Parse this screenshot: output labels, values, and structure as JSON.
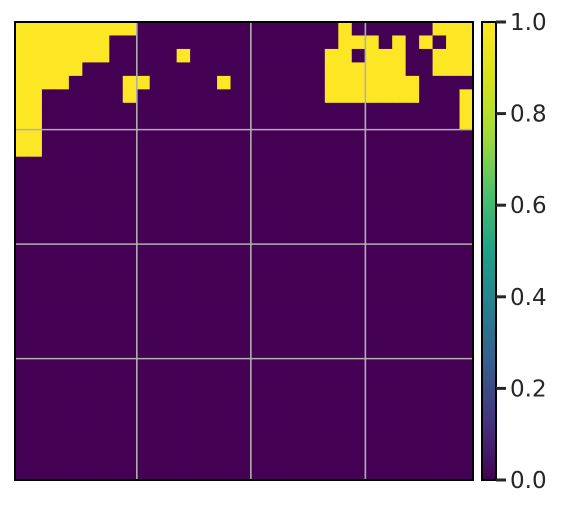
{
  "chart_data": {
    "type": "heatmap",
    "colormap": "viridis",
    "grid": true,
    "vmin": 0.0,
    "vmax": 1.0,
    "xticks": [],
    "yticks": [],
    "colorbar": {
      "ticks": [
        0.0,
        0.2,
        0.4,
        0.6,
        0.8,
        1.0
      ],
      "tick_labels": [
        "0.0",
        "0.2",
        "0.4",
        "0.6",
        "0.8",
        "1.0"
      ]
    },
    "colors": {
      "low": "#440154",
      "high": "#fde725",
      "gridline": "#b0b0b0",
      "frame": "#000000"
    },
    "matrix": [
      "1111111110000000000000001000000111",
      "1111111000000000000000001110101011",
      "1111111000001000000000011011100111",
      "1111100000000000000000011111100111",
      "1111000011000001000000011111110000",
      "1100000010000000000000011111110001",
      "1100000000000000000000000000000001",
      "1100000000000000000000000000000001",
      "1100000000000000000000000000000000",
      "1100000000000000000000000000000000",
      "0000000000000000000000000000000000",
      "0000000000000000000000000000000000",
      "0000000000000000000000000000000000",
      "0000000000000000000000000000000000",
      "0000000000000000000000000000000000",
      "0000000000000000000000000000000000",
      "0000000000000000000000000000000000",
      "0000000000000000000000000000000000",
      "0000000000000000000000000000000000",
      "0000000000000000000000000000000000",
      "0000000000000000000000000000000000",
      "0000000000000000000000000000000000",
      "0000000000000000000000000000000000",
      "0000000000000000000000000000000000",
      "0000000000000000000000000000000000",
      "0000000000000000000000000000000000",
      "0000000000000000000000000000000000",
      "0000000000000000000000000000000000",
      "0000000000000000000000000000000000",
      "0000000000000000000000000000000000",
      "0000000000000000000000000000000000",
      "0000000000000000000000000000000000",
      "0000000000000000000000000000000000",
      "0000000000000000000000000000000000"
    ]
  }
}
